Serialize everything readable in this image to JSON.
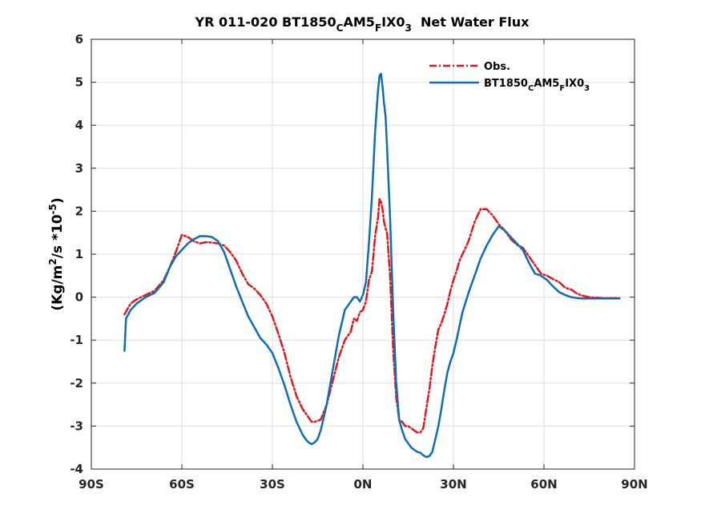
{
  "chart_data": {
    "type": "line",
    "title": {
      "main": "YR 011-020 BT1850",
      "sub1": "C",
      "mid1": "AM5",
      "sub2": "F",
      "mid2": "IX0",
      "sub3": "3",
      "tail": "  Net Water Flux"
    },
    "ylabel": {
      "pre": "(Kg/m",
      "sup1": "2",
      "mid": "/s *10",
      "sup2": "-5",
      "post": ")"
    },
    "xlim": [
      -90,
      90
    ],
    "ylim": [
      -4,
      6
    ],
    "xticks": [
      -90,
      -60,
      -30,
      0,
      30,
      60,
      90
    ],
    "xticklabels": [
      "90S",
      "60S",
      "30S",
      "0N",
      "30N",
      "60N",
      "90N"
    ],
    "yticks": [
      -4,
      -3,
      -2,
      -1,
      0,
      1,
      2,
      3,
      4,
      5,
      6
    ],
    "yticklabels": [
      "-4",
      "-3",
      "-2",
      "-1",
      "0",
      "1",
      "2",
      "3",
      "4",
      "5",
      "6"
    ],
    "grid": true,
    "legend_position": "top-right",
    "series": [
      {
        "name": "Obs.",
        "color": "#e3161e",
        "dash": true,
        "x": [
          -79,
          -77,
          -75,
          -72,
          -69,
          -66,
          -64,
          -62,
          -60,
          -58,
          -56,
          -54,
          -52,
          -50,
          -48,
          -46,
          -44,
          -42,
          -40,
          -38,
          -36,
          -34,
          -32,
          -30,
          -28,
          -26,
          -24,
          -22,
          -20,
          -18,
          -17,
          -16,
          -14,
          -12,
          -10,
          -8,
          -6,
          -4,
          -3,
          -2,
          -1,
          0,
          1,
          2,
          3,
          4,
          5,
          5.5,
          6,
          6.5,
          7,
          7.5,
          8,
          9,
          10,
          11,
          12,
          13,
          14,
          15,
          16,
          17,
          18,
          19,
          20,
          21,
          22,
          23,
          24,
          25,
          26,
          27,
          28,
          29,
          30,
          31,
          32,
          33,
          34,
          35,
          37,
          39,
          41,
          43,
          45,
          47,
          49,
          51,
          53,
          55,
          57,
          59,
          61,
          63,
          65,
          67,
          69,
          71,
          73,
          75,
          77,
          79,
          81,
          83,
          85
        ],
        "y": [
          -0.4,
          -0.15,
          -0.05,
          0.05,
          0.15,
          0.4,
          0.7,
          1.05,
          1.45,
          1.4,
          1.3,
          1.25,
          1.28,
          1.27,
          1.25,
          1.2,
          1.05,
          0.85,
          0.55,
          0.3,
          0.2,
          0.05,
          -0.15,
          -0.45,
          -0.85,
          -1.3,
          -1.85,
          -2.3,
          -2.6,
          -2.8,
          -2.9,
          -2.9,
          -2.85,
          -2.5,
          -1.95,
          -1.4,
          -1.0,
          -0.8,
          -0.5,
          -0.55,
          -0.35,
          -0.3,
          -0.1,
          0.4,
          0.6,
          1.4,
          1.85,
          2.28,
          2.22,
          2.05,
          1.75,
          1.6,
          1.5,
          0.5,
          -1.2,
          -2.3,
          -2.85,
          -2.9,
          -3.0,
          -3.0,
          -3.05,
          -3.1,
          -3.15,
          -3.15,
          -3.05,
          -2.6,
          -2.15,
          -1.6,
          -1.15,
          -0.75,
          -0.6,
          -0.4,
          -0.15,
          0.15,
          0.4,
          0.6,
          0.85,
          1.0,
          1.15,
          1.3,
          1.75,
          2.05,
          2.05,
          1.9,
          1.7,
          1.55,
          1.35,
          1.22,
          1.15,
          0.95,
          0.75,
          0.55,
          0.5,
          0.42,
          0.35,
          0.22,
          0.18,
          0.08,
          0.03,
          0.0,
          -0.01,
          -0.02,
          -0.02,
          -0.02,
          -0.02
        ]
      },
      {
        "name": "BT1850",
        "label": {
          "mid1": "C",
          "a": "AM5",
          "mid2": "F",
          "b": "IX0",
          "mid3": "3"
        },
        "color": "#0f6db5",
        "dash": false,
        "x": [
          -79,
          -78.5,
          -77,
          -75,
          -72,
          -69,
          -66,
          -64,
          -62,
          -60,
          -58,
          -56,
          -54,
          -52,
          -50,
          -48,
          -46,
          -44,
          -42,
          -40,
          -38,
          -36,
          -34,
          -32,
          -30,
          -28,
          -26,
          -24,
          -22,
          -20,
          -19,
          -18,
          -17,
          -16,
          -15,
          -14,
          -12,
          -10,
          -8,
          -6,
          -4,
          -3,
          -2,
          -1,
          0,
          1,
          2,
          3,
          4,
          4.5,
          5,
          5.5,
          6,
          6.5,
          7,
          7.5,
          8,
          9,
          10,
          11,
          12,
          13,
          14,
          15,
          16,
          17,
          18,
          19,
          20,
          21,
          22,
          23,
          24,
          25,
          26,
          27,
          28,
          29,
          30,
          31,
          33,
          35,
          37,
          39,
          41,
          43,
          45,
          47,
          49,
          51,
          53,
          55,
          57,
          59,
          61,
          63,
          65,
          67,
          69,
          71,
          73,
          75,
          77,
          79,
          81,
          83,
          85
        ],
        "y": [
          -1.25,
          -0.5,
          -0.3,
          -0.15,
          0.0,
          0.1,
          0.35,
          0.7,
          0.95,
          1.1,
          1.25,
          1.35,
          1.42,
          1.42,
          1.4,
          1.3,
          1.05,
          0.65,
          0.25,
          -0.1,
          -0.45,
          -0.7,
          -0.95,
          -1.1,
          -1.3,
          -1.65,
          -2.05,
          -2.5,
          -2.9,
          -3.2,
          -3.3,
          -3.38,
          -3.42,
          -3.38,
          -3.3,
          -3.1,
          -2.5,
          -1.7,
          -0.9,
          -0.3,
          -0.1,
          0.0,
          0.0,
          -0.1,
          0.05,
          0.35,
          1.25,
          2.35,
          3.8,
          4.3,
          4.8,
          5.15,
          5.2,
          4.9,
          4.5,
          4.2,
          3.5,
          1.85,
          -0.3,
          -1.95,
          -2.85,
          -3.1,
          -3.3,
          -3.4,
          -3.5,
          -3.55,
          -3.6,
          -3.62,
          -3.68,
          -3.72,
          -3.7,
          -3.6,
          -3.3,
          -3.0,
          -2.6,
          -2.15,
          -1.75,
          -1.5,
          -1.3,
          -1.0,
          -0.35,
          0.1,
          0.5,
          0.9,
          1.2,
          1.45,
          1.65,
          1.55,
          1.4,
          1.25,
          1.1,
          0.8,
          0.55,
          0.5,
          0.4,
          0.25,
          0.12,
          0.05,
          0.0,
          -0.02,
          -0.03,
          -0.03,
          -0.03,
          -0.03,
          -0.03,
          -0.03,
          -0.03
        ]
      }
    ]
  }
}
